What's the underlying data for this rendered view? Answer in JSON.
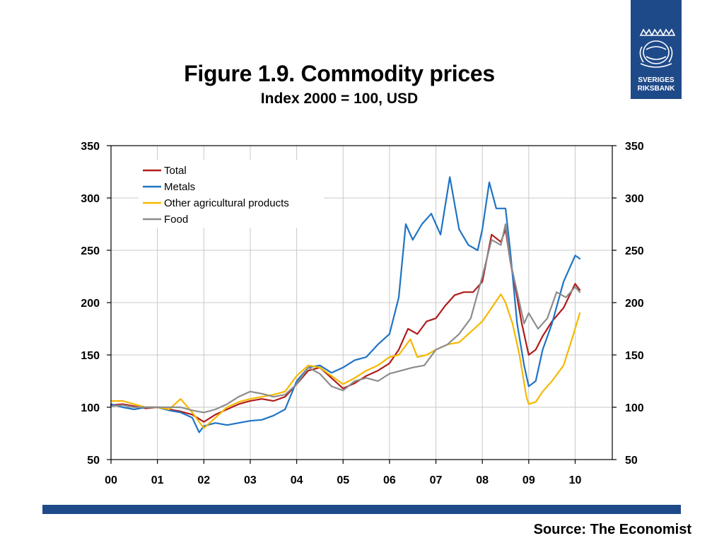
{
  "title": "Figure 1.9. Commodity prices",
  "subtitle": "Index 2000 = 100, USD",
  "source": "Source: The Economist",
  "logo": {
    "line1": "SVERIGES",
    "line2": "RIKSBANK"
  },
  "colors": {
    "brand": "#1f4a8a",
    "total": "#b01c1c",
    "metals": "#1f74c4",
    "agri": "#f5b800",
    "food": "#8c8c8c"
  },
  "chart_data": {
    "type": "line",
    "title": "Figure 1.9. Commodity prices",
    "subtitle": "Index 2000 = 100, USD",
    "xlabel": "",
    "ylabel": "",
    "xlim": [
      0,
      10.8
    ],
    "ylim": [
      50,
      350
    ],
    "y_ticks": [
      50,
      100,
      150,
      200,
      250,
      300,
      350
    ],
    "x_ticks": [
      0,
      1,
      2,
      3,
      4,
      5,
      6,
      7,
      8,
      9,
      10
    ],
    "x_tick_labels": [
      "00",
      "01",
      "02",
      "03",
      "04",
      "05",
      "06",
      "07",
      "08",
      "09",
      "10"
    ],
    "grid": true,
    "legend_position": "top-left",
    "series": [
      {
        "name": "Total",
        "color": "#b01c1c",
        "x": [
          0,
          0.25,
          0.5,
          0.75,
          1.0,
          1.25,
          1.5,
          1.75,
          2.0,
          2.25,
          2.5,
          2.75,
          3.0,
          3.25,
          3.5,
          3.75,
          4.0,
          4.25,
          4.5,
          4.75,
          5.0,
          5.25,
          5.5,
          5.75,
          6.0,
          6.2,
          6.4,
          6.6,
          6.8,
          7.0,
          7.2,
          7.4,
          7.6,
          7.8,
          8.0,
          8.2,
          8.4,
          8.5,
          8.6,
          8.75,
          8.85,
          9.0,
          9.15,
          9.3,
          9.5,
          9.75,
          10.0,
          10.1
        ],
        "values": [
          102,
          103,
          101,
          99,
          100,
          98,
          96,
          93,
          86,
          93,
          98,
          103,
          106,
          108,
          106,
          110,
          122,
          135,
          138,
          128,
          118,
          123,
          130,
          135,
          142,
          155,
          175,
          170,
          182,
          185,
          197,
          207,
          210,
          210,
          220,
          265,
          258,
          270,
          240,
          205,
          180,
          150,
          155,
          168,
          182,
          195,
          218,
          212
        ]
      },
      {
        "name": "Metals",
        "color": "#1f74c4",
        "x": [
          0,
          0.25,
          0.5,
          0.75,
          1.0,
          1.25,
          1.5,
          1.75,
          1.9,
          2.0,
          2.25,
          2.5,
          2.75,
          3.0,
          3.25,
          3.5,
          3.75,
          4.0,
          4.25,
          4.5,
          4.75,
          5.0,
          5.25,
          5.5,
          5.75,
          6.0,
          6.2,
          6.35,
          6.5,
          6.7,
          6.9,
          7.1,
          7.3,
          7.5,
          7.7,
          7.9,
          8.0,
          8.15,
          8.3,
          8.5,
          8.6,
          8.75,
          8.9,
          9.0,
          9.15,
          9.3,
          9.5,
          9.75,
          10.0,
          10.1
        ],
        "values": [
          103,
          100,
          98,
          100,
          100,
          97,
          95,
          90,
          76,
          82,
          85,
          83,
          85,
          87,
          88,
          92,
          98,
          125,
          138,
          140,
          133,
          138,
          145,
          148,
          160,
          170,
          205,
          275,
          260,
          275,
          285,
          265,
          320,
          270,
          255,
          250,
          270,
          315,
          290,
          290,
          250,
          180,
          140,
          120,
          125,
          155,
          180,
          220,
          245,
          242
        ]
      },
      {
        "name": "Other agricultural products",
        "color": "#f5b800",
        "x": [
          0,
          0.25,
          0.5,
          0.75,
          1.0,
          1.25,
          1.5,
          1.75,
          2.0,
          2.25,
          2.5,
          2.75,
          3.0,
          3.25,
          3.5,
          3.75,
          4.0,
          4.25,
          4.5,
          4.75,
          5.0,
          5.25,
          5.5,
          5.75,
          6.0,
          6.2,
          6.45,
          6.6,
          6.8,
          7.0,
          7.25,
          7.5,
          7.75,
          8.0,
          8.2,
          8.4,
          8.5,
          8.65,
          8.8,
          8.95,
          9.0,
          9.15,
          9.3,
          9.5,
          9.75,
          10.0,
          10.1
        ],
        "values": [
          106,
          106,
          103,
          100,
          100,
          98,
          108,
          95,
          80,
          90,
          100,
          105,
          108,
          110,
          112,
          115,
          130,
          140,
          138,
          130,
          122,
          128,
          135,
          140,
          148,
          150,
          165,
          148,
          150,
          155,
          160,
          162,
          172,
          182,
          195,
          208,
          200,
          180,
          150,
          110,
          103,
          105,
          115,
          125,
          140,
          175,
          190
        ]
      },
      {
        "name": "Food",
        "color": "#8c8c8c",
        "x": [
          0,
          0.25,
          0.5,
          0.75,
          1.0,
          1.25,
          1.5,
          1.75,
          2.0,
          2.25,
          2.5,
          2.75,
          3.0,
          3.25,
          3.5,
          3.75,
          4.0,
          4.25,
          4.5,
          4.75,
          5.0,
          5.25,
          5.5,
          5.75,
          6.0,
          6.25,
          6.5,
          6.75,
          7.0,
          7.25,
          7.5,
          7.75,
          8.0,
          8.2,
          8.4,
          8.5,
          8.6,
          8.75,
          8.9,
          9.0,
          9.2,
          9.4,
          9.6,
          9.8,
          10.0,
          10.1
        ],
        "values": [
          101,
          102,
          100,
          100,
          100,
          100,
          100,
          97,
          95,
          98,
          103,
          110,
          115,
          113,
          110,
          112,
          122,
          138,
          132,
          120,
          116,
          125,
          128,
          125,
          132,
          135,
          138,
          140,
          155,
          160,
          170,
          185,
          225,
          260,
          255,
          275,
          240,
          210,
          180,
          190,
          175,
          185,
          210,
          205,
          215,
          210
        ]
      }
    ]
  }
}
